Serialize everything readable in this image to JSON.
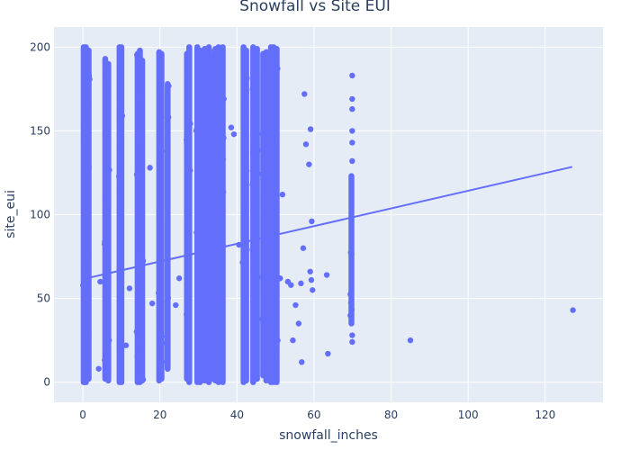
{
  "chart_data": {
    "type": "scatter",
    "title": "Snowfall vs Site EUI",
    "xlabel": "snowfall_inches",
    "ylabel": "site_eui",
    "xlim": [
      -7.5,
      135
    ],
    "ylim": [
      -12,
      212
    ],
    "xticks": [
      0,
      20,
      40,
      60,
      80,
      100,
      120
    ],
    "yticks": [
      0,
      50,
      100,
      150,
      200
    ],
    "grid": true,
    "colors": {
      "marker": "#636efa",
      "plot_background": "#e5ecf6",
      "grid": "#ffffff",
      "text": "#2a3f5f"
    },
    "series": [
      {
        "type": "scatter",
        "columns": [
          {
            "x": 0.2,
            "ymin": 0,
            "ymax": 200
          },
          {
            "x": 0.8,
            "ymin": 0,
            "ymax": 200
          },
          {
            "x": 1.5,
            "ymin": 2,
            "ymax": 198
          },
          {
            "x": 5.8,
            "ymin": 2,
            "ymax": 193
          },
          {
            "x": 6.6,
            "ymin": 1,
            "ymax": 190
          },
          {
            "x": 9.5,
            "ymin": 0,
            "ymax": 200
          },
          {
            "x": 10.0,
            "ymin": 0,
            "ymax": 200
          },
          {
            "x": 14.2,
            "ymin": 0,
            "ymax": 196
          },
          {
            "x": 14.8,
            "ymin": 0,
            "ymax": 198
          },
          {
            "x": 15.4,
            "ymin": 1,
            "ymax": 192
          },
          {
            "x": 19.8,
            "ymin": 1,
            "ymax": 197
          },
          {
            "x": 20.4,
            "ymin": 2,
            "ymax": 196
          },
          {
            "x": 22.0,
            "ymin": 8,
            "ymax": 178
          },
          {
            "x": 27.0,
            "ymin": 2,
            "ymax": 196
          },
          {
            "x": 27.6,
            "ymin": 0,
            "ymax": 200
          },
          {
            "x": 29.7,
            "ymin": 0,
            "ymax": 200
          },
          {
            "x": 30.4,
            "ymin": 0,
            "ymax": 198
          },
          {
            "x": 31.6,
            "ymin": 1,
            "ymax": 199
          },
          {
            "x": 32.7,
            "ymin": 0,
            "ymax": 200
          },
          {
            "x": 33.5,
            "ymin": 2,
            "ymax": 195
          },
          {
            "x": 34.4,
            "ymin": 1,
            "ymax": 199
          },
          {
            "x": 35.2,
            "ymin": 0,
            "ymax": 200
          },
          {
            "x": 36.3,
            "ymin": 0,
            "ymax": 200
          },
          {
            "x": 41.7,
            "ymin": 0,
            "ymax": 200
          },
          {
            "x": 42.4,
            "ymin": 1,
            "ymax": 198
          },
          {
            "x": 44.2,
            "ymin": 0,
            "ymax": 200
          },
          {
            "x": 45.2,
            "ymin": 2,
            "ymax": 199
          },
          {
            "x": 46.8,
            "ymin": 4,
            "ymax": 196
          },
          {
            "x": 47.6,
            "ymin": 1,
            "ymax": 197
          },
          {
            "x": 48.8,
            "ymin": 0,
            "ymax": 200
          },
          {
            "x": 49.5,
            "ymin": 0,
            "ymax": 200
          },
          {
            "x": 50.3,
            "ymin": 0,
            "ymax": 199
          },
          {
            "x": 69.7,
            "ymin": 35,
            "ymax": 123
          }
        ],
        "points": [
          [
            4.5,
            60
          ],
          [
            4.1,
            8
          ],
          [
            6.8,
            25
          ],
          [
            11.2,
            22
          ],
          [
            12.1,
            56
          ],
          [
            17.4,
            128
          ],
          [
            18.0,
            47
          ],
          [
            24.1,
            46
          ],
          [
            25.0,
            62
          ],
          [
            38.5,
            152
          ],
          [
            39.2,
            148
          ],
          [
            40.5,
            82
          ],
          [
            51.2,
            62
          ],
          [
            51.8,
            112
          ],
          [
            53.2,
            60
          ],
          [
            54.0,
            58
          ],
          [
            54.5,
            25
          ],
          [
            55.2,
            46
          ],
          [
            56.0,
            35
          ],
          [
            56.6,
            59
          ],
          [
            56.8,
            12
          ],
          [
            57.2,
            80
          ],
          [
            57.5,
            172
          ],
          [
            57.9,
            142
          ],
          [
            58.7,
            130
          ],
          [
            59.1,
            151
          ],
          [
            59.4,
            96
          ],
          [
            59.0,
            66
          ],
          [
            59.3,
            61
          ],
          [
            59.6,
            55
          ],
          [
            63.3,
            64
          ],
          [
            63.6,
            17
          ],
          [
            69.9,
            183
          ],
          [
            69.9,
            169
          ],
          [
            69.9,
            163
          ],
          [
            69.9,
            150
          ],
          [
            69.9,
            143
          ],
          [
            69.9,
            132
          ],
          [
            69.9,
            24
          ],
          [
            69.9,
            28
          ],
          [
            85.0,
            25
          ],
          [
            127.2,
            43
          ]
        ]
      },
      {
        "type": "line",
        "x": [
          0,
          127
        ],
        "y": [
          61.5,
          128.5
        ]
      }
    ]
  }
}
